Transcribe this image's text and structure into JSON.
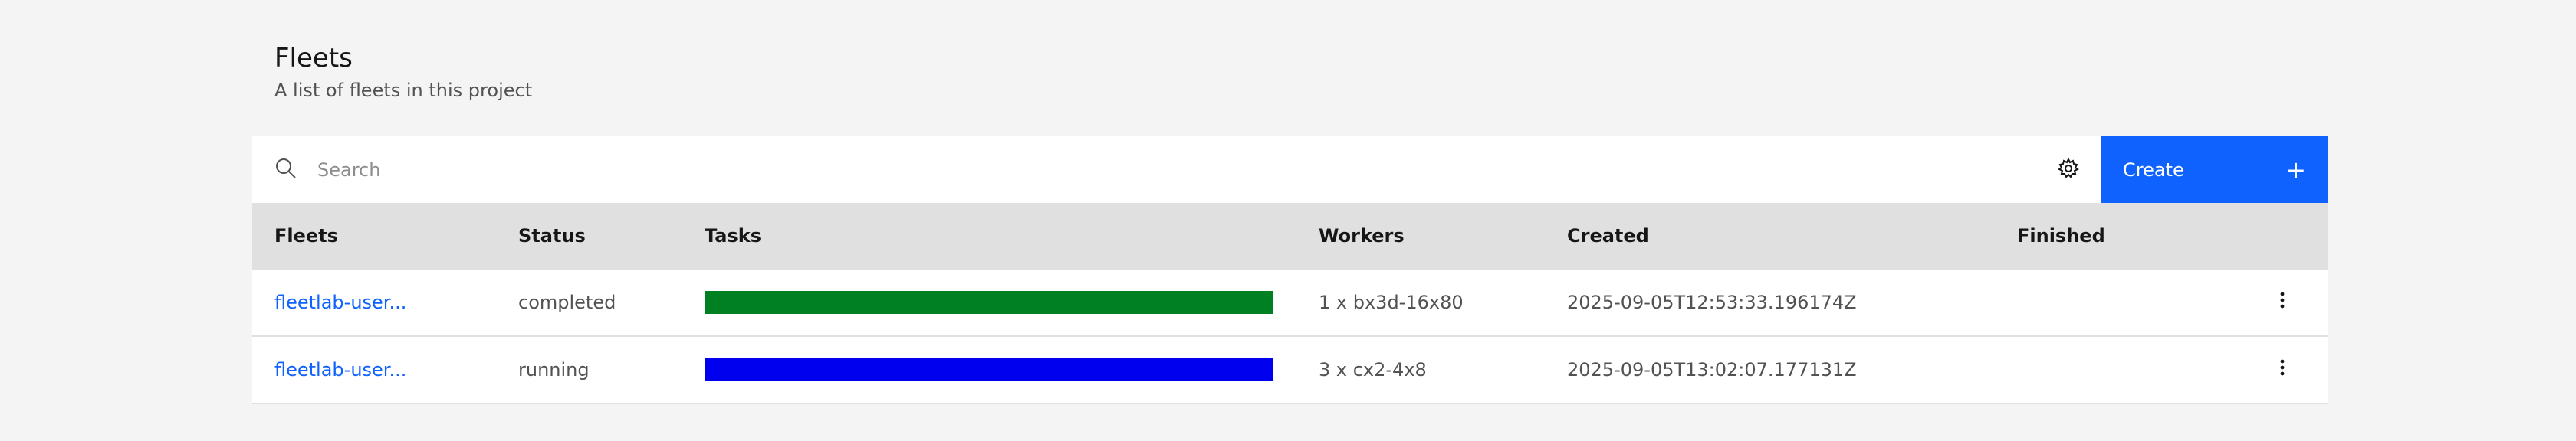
{
  "header": {
    "title": "Fleets",
    "subtitle": "A list of fleets in this project"
  },
  "toolbar": {
    "search_placeholder": "Search",
    "settings_icon": "gear-icon",
    "create_label": "Create",
    "create_icon": "+"
  },
  "table": {
    "columns": [
      "Fleets",
      "Status",
      "Tasks",
      "Workers",
      "Created",
      "Finished"
    ],
    "rows": [
      {
        "fleet": "fleetlab-user...",
        "status": "completed",
        "tasks_progress": 1.0,
        "tasks_color": "#008023",
        "workers": "1 x bx3d-16x80",
        "created": "2025-09-05T12:53:33.196174Z",
        "finished": ""
      },
      {
        "fleet": "fleetlab-user...",
        "status": "running",
        "tasks_progress": 1.0,
        "tasks_color": "#0000ee",
        "workers": "3 x cx2-4x8",
        "created": "2025-09-05T13:02:07.177131Z",
        "finished": ""
      }
    ]
  },
  "colors": {
    "accent": "#0f62fe",
    "background": "#f4f4f4",
    "header_row": "#e0e0e0"
  }
}
